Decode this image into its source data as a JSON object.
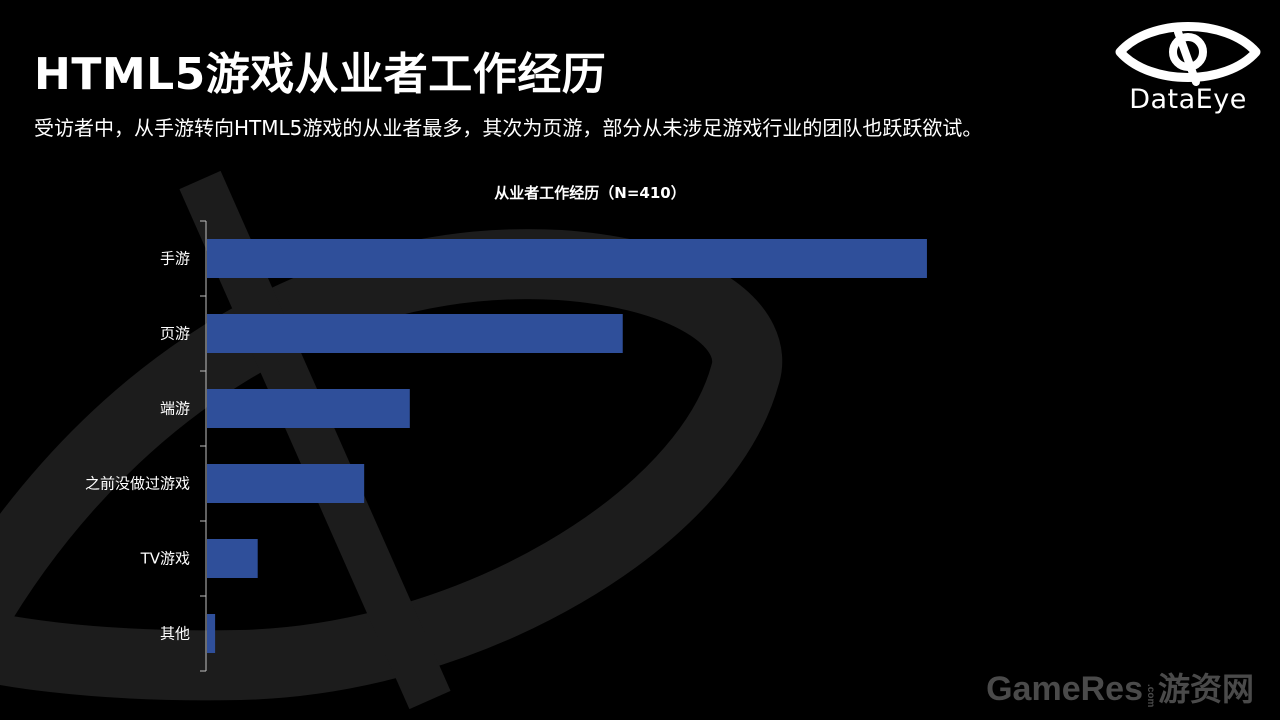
{
  "header": {
    "title": "HTML5游戏从业者工作经历",
    "subtitle": "受访者中，从手游转向HTML5游戏的从业者最多，其次为页游，部分从未涉足游戏行业的团队也跃跃欲试。"
  },
  "logo": {
    "text": "DataEye",
    "icon": "eye-icon"
  },
  "watermark": {
    "brand": "GameRes",
    "suffix": ".com",
    "cn": "游资网"
  },
  "colors": {
    "background": "#000000",
    "bar": "#2f4f9a",
    "text": "#ffffff",
    "background_shape": "#1c1c1c",
    "watermark": "#4a4a4a"
  },
  "chart_data": {
    "type": "bar",
    "orientation": "horizontal",
    "title": "从业者工作经历（N=410）",
    "categories": [
      "手游",
      "页游",
      "端游",
      "之前没做过游戏",
      "TV游戏",
      "其他"
    ],
    "values": [
      71,
      41,
      20,
      15.5,
      5,
      0.8
    ],
    "xlim": [
      0,
      100
    ],
    "gridlines": false,
    "legend": "none"
  }
}
